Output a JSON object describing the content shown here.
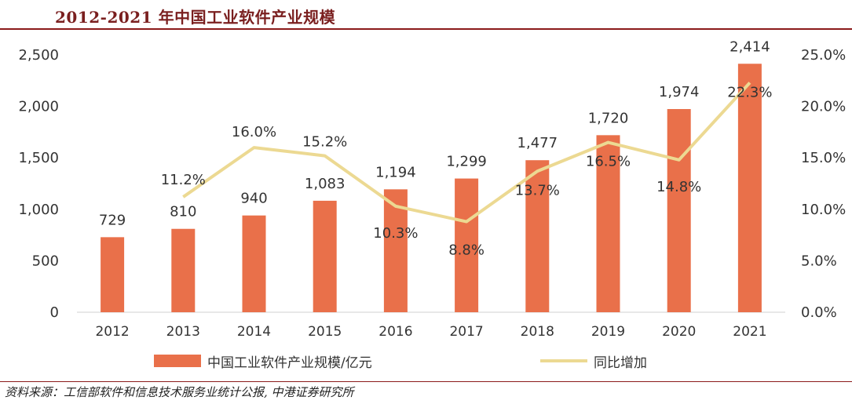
{
  "title": "2012-2021 年中国工业软件产业规模",
  "source": "资料来源：工信部软件和信息技术服务业统计公报, 中港证券研究所",
  "colors": {
    "bar": "#e9704a",
    "line": "#ecd992",
    "title": "#7a1f1f",
    "rule": "#8b1a1a"
  },
  "chart_data": {
    "type": "bar",
    "categories": [
      "2012",
      "2013",
      "2014",
      "2015",
      "2016",
      "2017",
      "2018",
      "2019",
      "2020",
      "2021"
    ],
    "series": [
      {
        "name": "中国工业软件产业规模/亿元",
        "type": "bar",
        "axis": "left",
        "values": [
          729,
          810,
          940,
          1083,
          1194,
          1299,
          1477,
          1720,
          1974,
          2414
        ],
        "labels": [
          "729",
          "810",
          "940",
          "1,083",
          "1,194",
          "1,299",
          "1,477",
          "1,720",
          "1,974",
          "2,414"
        ]
      },
      {
        "name": "同比增加",
        "type": "line",
        "axis": "right",
        "values": [
          null,
          11.2,
          16.0,
          15.2,
          10.3,
          8.8,
          13.7,
          16.5,
          14.8,
          22.3
        ],
        "labels": [
          "",
          "11.2%",
          "16.0%",
          "15.2%",
          "10.3%",
          "8.8%",
          "13.7%",
          "16.5%",
          "14.8%",
          "22.3%"
        ]
      }
    ],
    "y_left": {
      "ylim": [
        0,
        2500
      ],
      "ticks": [
        "0",
        "500",
        "1,000",
        "1,500",
        "2,000",
        "2,500"
      ]
    },
    "y_right": {
      "ylim": [
        0,
        25
      ],
      "ticks": [
        "0.0%",
        "5.0%",
        "10.0%",
        "15.0%",
        "20.0%",
        "25.0%"
      ]
    },
    "grid": false,
    "legend": "bottom"
  }
}
